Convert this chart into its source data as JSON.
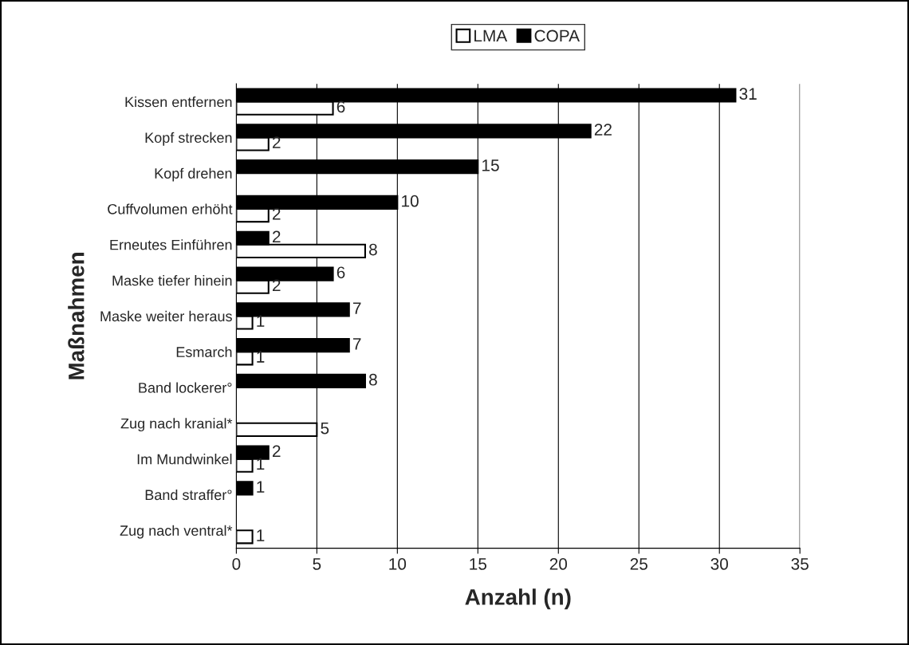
{
  "chart_data": {
    "type": "bar",
    "orientation": "horizontal",
    "xlabel": "Anzahl (n)",
    "ylabel": "Maßnahmen",
    "categories": [
      "Kissen entfernen",
      "Kopf strecken",
      "Kopf drehen",
      "Cuffvolumen erhöht",
      "Erneutes Einführen",
      "Maske tiefer hinein",
      "Maske weiter heraus",
      "Esmarch",
      "Band lockerer°",
      "Zug nach kranial*",
      "Im Mundwinkel",
      "Band straffer°",
      "Zug nach ventral*"
    ],
    "series": [
      {
        "name": "LMA",
        "color": "#ffffff",
        "values": [
          6,
          2,
          null,
          2,
          8,
          2,
          1,
          1,
          null,
          5,
          1,
          null,
          1
        ]
      },
      {
        "name": "COPA",
        "color": "#000000",
        "values": [
          31,
          22,
          15,
          10,
          2,
          6,
          7,
          7,
          8,
          null,
          2,
          1,
          null
        ]
      }
    ],
    "xlim": [
      0,
      35
    ],
    "xticks": [
      0,
      5,
      10,
      15,
      20,
      25,
      30,
      35
    ],
    "grid": "x",
    "legend": "top",
    "data_labels": true
  }
}
